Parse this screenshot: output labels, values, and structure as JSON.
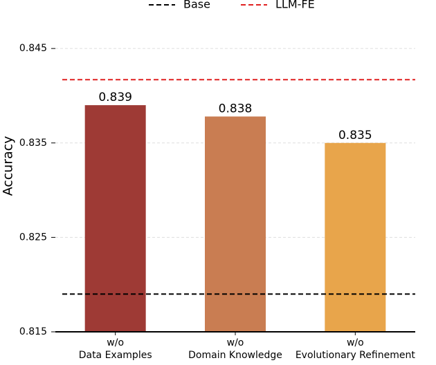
{
  "chart_data": {
    "type": "bar",
    "ylabel": "Accuracy",
    "categories": [
      [
        "w/o",
        "Data Examples"
      ],
      [
        "w/o",
        "Domain Knowledge"
      ],
      [
        "w/o",
        "Evolutionary Refinement"
      ]
    ],
    "values": [
      0.839,
      0.8378,
      0.835
    ],
    "value_labels": [
      "0.839",
      "0.838",
      "0.835"
    ],
    "colors": [
      "#9e3a35",
      "#c97d52",
      "#e8a54b"
    ],
    "reference_lines": [
      {
        "name": "Base",
        "value": 0.819,
        "color": "#000000"
      },
      {
        "name": "LLM-FE",
        "value": 0.8417,
        "color": "#e02020"
      }
    ],
    "ylim": [
      0.815,
      0.8475
    ],
    "yticks": [
      0.815,
      0.825,
      0.835,
      0.845
    ],
    "grid": true
  }
}
